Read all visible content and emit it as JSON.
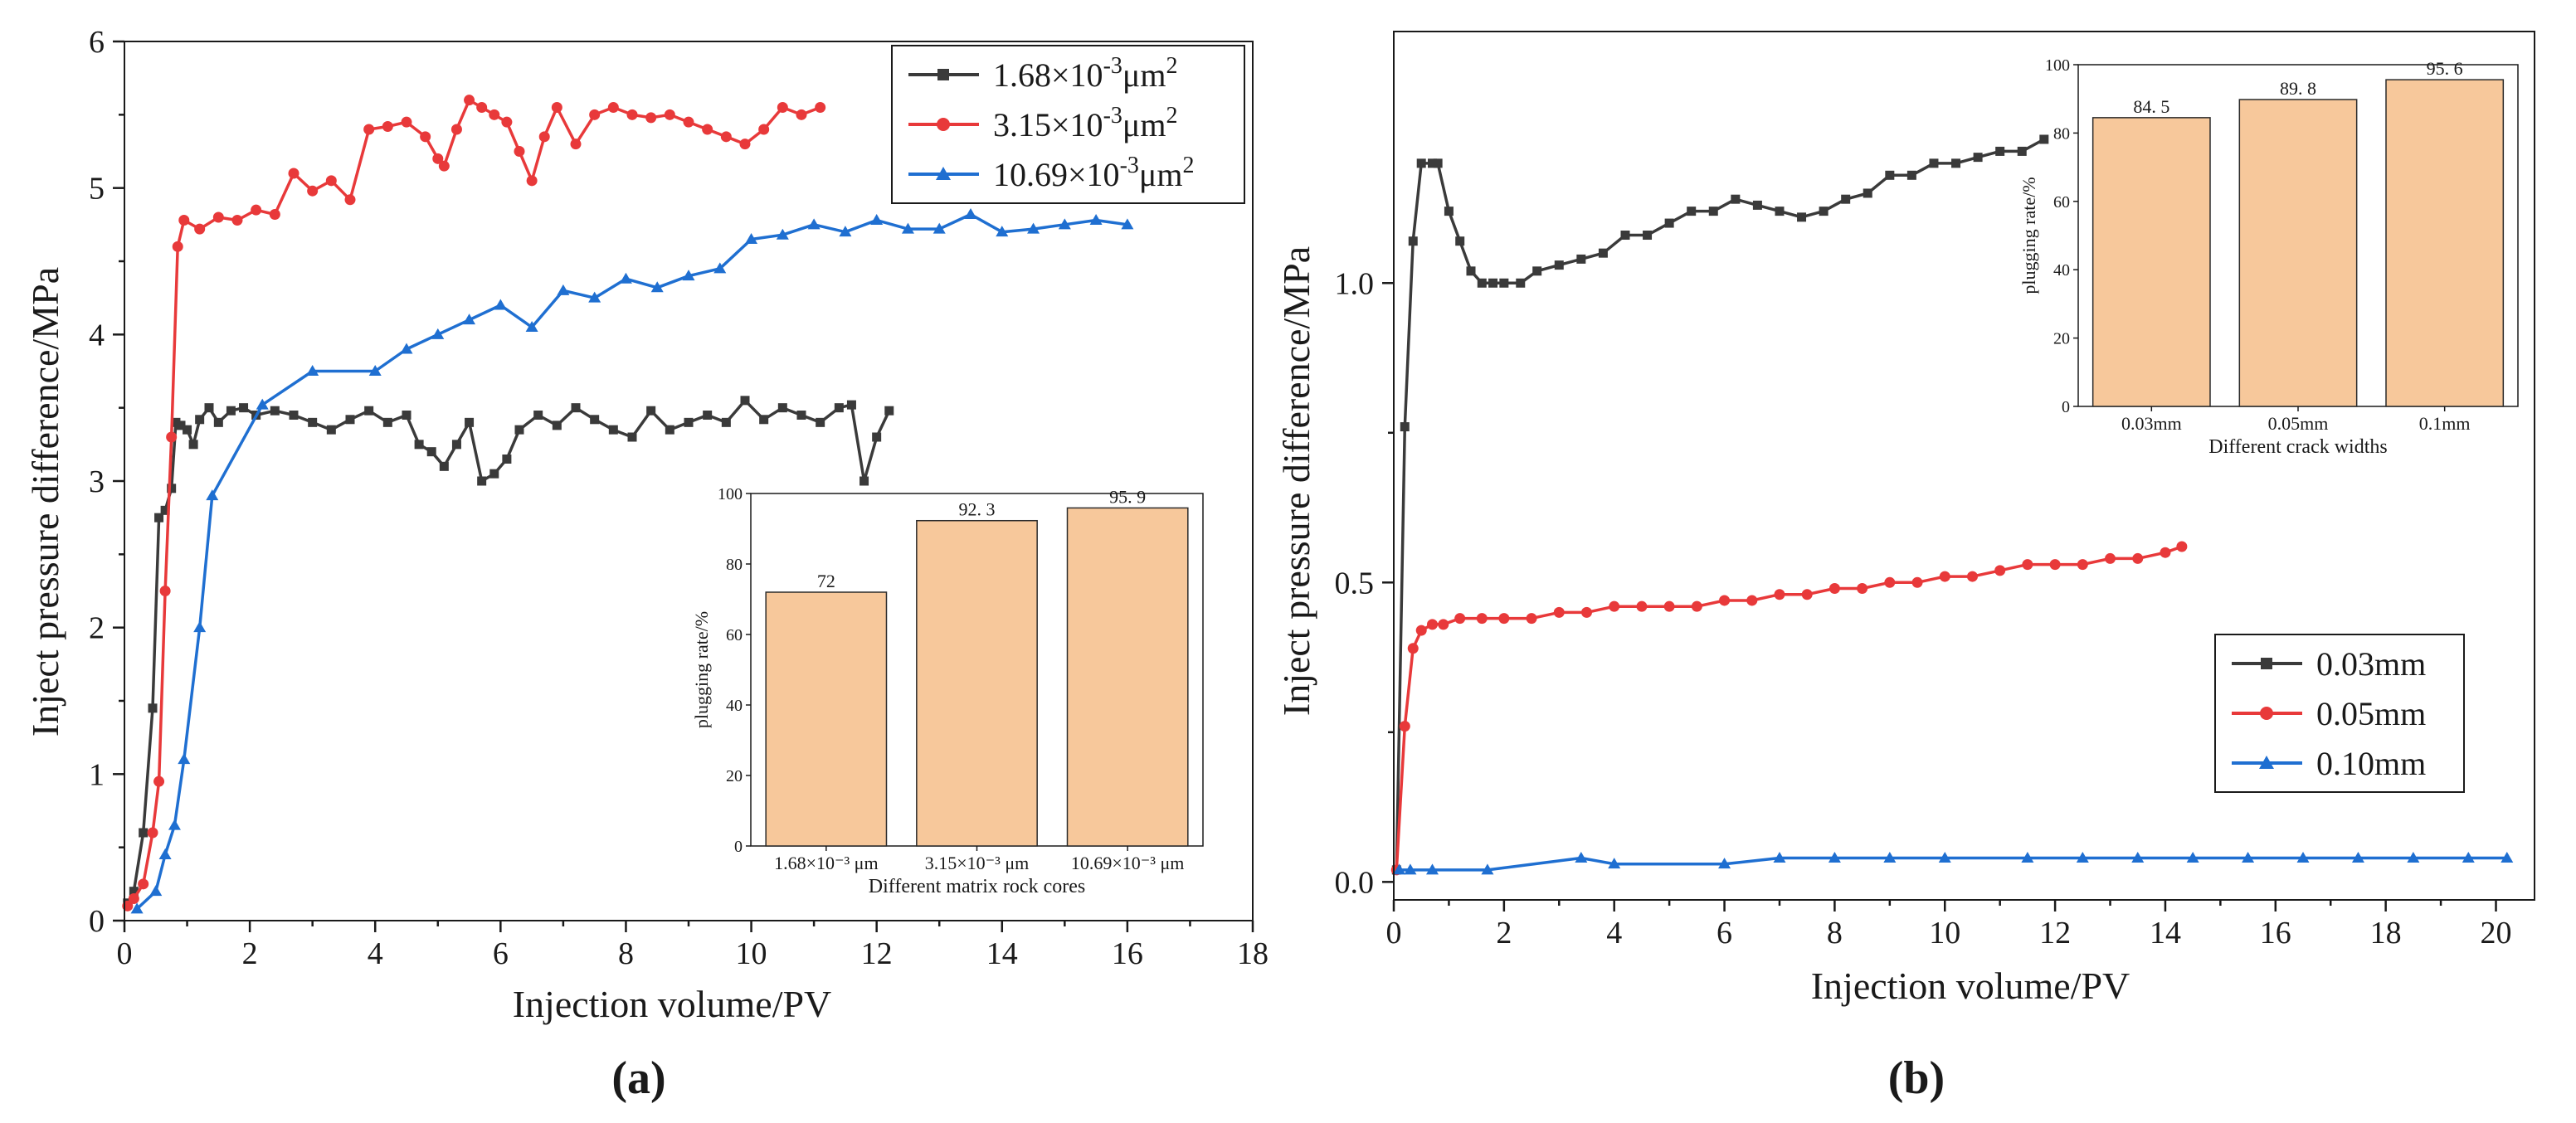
{
  "colors": {
    "series_black": "#3a3a3a",
    "series_red": "#e8393a",
    "series_blue": "#1f6fd1",
    "bar_fill": "#f7c89b",
    "bar_stroke": "#2b2b2b"
  },
  "panel_labels": {
    "a": "(a)",
    "b": "(b)"
  },
  "chart_data": [
    {
      "id": "a",
      "type": "line",
      "title": "",
      "xlabel": "Injection volume/PV",
      "ylabel": "Inject pressure difference/MPa",
      "xlim": [
        0,
        18
      ],
      "ylim": [
        0,
        6
      ],
      "xticks": [
        0,
        2,
        4,
        6,
        8,
        10,
        12,
        14,
        16,
        18
      ],
      "yticks": [
        0,
        1,
        2,
        3,
        4,
        5,
        6
      ],
      "xtick_labels": [
        "0",
        "2",
        "4",
        "6",
        "8",
        "10",
        "12",
        "14",
        "16",
        "18"
      ],
      "ytick_labels": [
        "0",
        "1",
        "2",
        "3",
        "4",
        "5",
        "6"
      ],
      "legend_position": "top-right",
      "series": [
        {
          "name": "1.68×10⁻³μm²",
          "legend_base": "1.68×10",
          "legend_exp": "-3",
          "legend_unit": "μm",
          "legend_unit_exp": "2",
          "color": "#3a3a3a",
          "marker": "square",
          "x": [
            0.05,
            0.15,
            0.3,
            0.45,
            0.55,
            0.65,
            0.75,
            0.82,
            0.9,
            1.0,
            1.1,
            1.2,
            1.35,
            1.5,
            1.7,
            1.9,
            2.1,
            2.4,
            2.7,
            3.0,
            3.3,
            3.6,
            3.9,
            4.2,
            4.5,
            4.7,
            4.9,
            5.1,
            5.3,
            5.5,
            5.7,
            5.9,
            6.1,
            6.3,
            6.6,
            6.9,
            7.2,
            7.5,
            7.8,
            8.1,
            8.4,
            8.7,
            9.0,
            9.3,
            9.6,
            9.9,
            10.2,
            10.5,
            10.8,
            11.1,
            11.4,
            11.6,
            11.8,
            12.0,
            12.2
          ],
          "values": [
            0.12,
            0.2,
            0.6,
            1.45,
            2.75,
            2.8,
            2.95,
            3.4,
            3.38,
            3.35,
            3.25,
            3.42,
            3.5,
            3.4,
            3.48,
            3.5,
            3.45,
            3.48,
            3.45,
            3.4,
            3.35,
            3.42,
            3.48,
            3.4,
            3.45,
            3.25,
            3.2,
            3.1,
            3.25,
            3.4,
            3.0,
            3.05,
            3.15,
            3.35,
            3.45,
            3.38,
            3.5,
            3.42,
            3.35,
            3.3,
            3.48,
            3.35,
            3.4,
            3.45,
            3.4,
            3.55,
            3.42,
            3.5,
            3.45,
            3.4,
            3.5,
            3.52,
            3.0,
            3.3,
            3.48
          ]
        },
        {
          "name": "3.15×10⁻³μm²",
          "legend_base": "3.15×10",
          "legend_exp": "-3",
          "legend_unit": "μm",
          "legend_unit_exp": "2",
          "color": "#e8393a",
          "marker": "circle",
          "x": [
            0.05,
            0.15,
            0.3,
            0.45,
            0.55,
            0.65,
            0.75,
            0.85,
            0.95,
            1.2,
            1.5,
            1.8,
            2.1,
            2.4,
            2.7,
            3.0,
            3.3,
            3.6,
            3.9,
            4.2,
            4.5,
            4.8,
            5.0,
            5.1,
            5.3,
            5.5,
            5.7,
            5.9,
            6.1,
            6.3,
            6.5,
            6.7,
            6.9,
            7.2,
            7.5,
            7.8,
            8.1,
            8.4,
            8.7,
            9.0,
            9.3,
            9.6,
            9.9,
            10.2,
            10.5,
            10.8,
            11.1
          ],
          "values": [
            0.1,
            0.15,
            0.25,
            0.6,
            0.95,
            2.25,
            3.3,
            4.6,
            4.78,
            4.72,
            4.8,
            4.78,
            4.85,
            4.82,
            5.1,
            4.98,
            5.05,
            4.92,
            5.4,
            5.42,
            5.45,
            5.35,
            5.2,
            5.15,
            5.4,
            5.6,
            5.55,
            5.5,
            5.45,
            5.25,
            5.05,
            5.35,
            5.55,
            5.3,
            5.5,
            5.55,
            5.5,
            5.48,
            5.5,
            5.45,
            5.4,
            5.35,
            5.3,
            5.4,
            5.55,
            5.5,
            5.55
          ]
        },
        {
          "name": "10.69×10⁻³μm²",
          "legend_base": "10.69×10",
          "legend_exp": "-3",
          "legend_unit": "μm",
          "legend_unit_exp": "2",
          "color": "#1f6fd1",
          "marker": "triangle",
          "x": [
            0.2,
            0.5,
            0.65,
            0.8,
            0.95,
            1.2,
            1.4,
            2.2,
            3.0,
            4.0,
            4.5,
            5.0,
            5.5,
            6.0,
            6.5,
            7.0,
            7.5,
            8.0,
            8.5,
            9.0,
            9.5,
            10.0,
            10.5,
            11.0,
            11.5,
            12.0,
            12.5,
            13.0,
            13.5,
            14.0,
            14.5,
            15.0,
            15.5,
            16.0
          ],
          "values": [
            0.08,
            0.2,
            0.45,
            0.65,
            1.1,
            2.0,
            2.9,
            3.52,
            3.75,
            3.75,
            3.9,
            4.0,
            4.1,
            4.2,
            4.05,
            4.3,
            4.25,
            4.38,
            4.32,
            4.4,
            4.45,
            4.65,
            4.68,
            4.75,
            4.7,
            4.78,
            4.72,
            4.72,
            4.82,
            4.7,
            4.72,
            4.75,
            4.78,
            4.75
          ]
        }
      ],
      "inset": {
        "type": "bar",
        "categories": [
          "1.68×10⁻³ μm",
          "3.15×10⁻³ μm",
          "10.69×10⁻³ μm"
        ],
        "values": [
          72,
          92.3,
          95.9
        ],
        "value_labels": [
          "72",
          "92. 3",
          "95. 9"
        ],
        "xlabel": "Different matrix rock cores",
        "ylabel": "plugging rate/%",
        "ylim": [
          0,
          100
        ],
        "yticks": [
          0,
          20,
          40,
          60,
          80,
          100
        ],
        "ytick_labels": [
          "0",
          "20",
          "40",
          "60",
          "80",
          "100"
        ]
      }
    },
    {
      "id": "b",
      "type": "line",
      "title": "",
      "xlabel": "Injection volume/PV",
      "ylabel": "Inject pressure difference/MPa",
      "xlim": [
        0,
        20.7
      ],
      "ylim": [
        -0.03,
        1.42
      ],
      "xticks": [
        0,
        2,
        4,
        6,
        8,
        10,
        12,
        14,
        16,
        18,
        20
      ],
      "yticks": [
        0,
        0.5,
        1.0
      ],
      "xtick_labels": [
        "0",
        "2",
        "4",
        "6",
        "8",
        "10",
        "12",
        "14",
        "16",
        "18",
        "20"
      ],
      "ytick_labels": [
        "0.0",
        "0.5",
        "1.0"
      ],
      "legend_position": "center-right",
      "series": [
        {
          "name": "0.03mm",
          "color": "#3a3a3a",
          "marker": "square",
          "x": [
            0.05,
            0.2,
            0.35,
            0.5,
            0.7,
            0.8,
            1.0,
            1.2,
            1.4,
            1.6,
            1.8,
            2.0,
            2.3,
            2.6,
            3.0,
            3.4,
            3.8,
            4.2,
            4.6,
            5.0,
            5.4,
            5.8,
            6.2,
            6.6,
            7.0,
            7.4,
            7.8,
            8.2,
            8.6,
            9.0,
            9.4,
            9.8,
            10.2,
            10.6,
            11.0,
            11.4,
            11.8
          ],
          "values": [
            0.02,
            0.76,
            1.07,
            1.2,
            1.2,
            1.2,
            1.12,
            1.07,
            1.02,
            1.0,
            1.0,
            1.0,
            1.0,
            1.02,
            1.03,
            1.04,
            1.05,
            1.08,
            1.08,
            1.1,
            1.12,
            1.12,
            1.14,
            1.13,
            1.12,
            1.11,
            1.12,
            1.14,
            1.15,
            1.18,
            1.18,
            1.2,
            1.2,
            1.21,
            1.22,
            1.22,
            1.24
          ]
        },
        {
          "name": "0.05mm",
          "color": "#e8393a",
          "marker": "circle",
          "x": [
            0.05,
            0.2,
            0.35,
            0.5,
            0.7,
            0.9,
            1.2,
            1.6,
            2.0,
            2.5,
            3.0,
            3.5,
            4.0,
            4.5,
            5.0,
            5.5,
            6.0,
            6.5,
            7.0,
            7.5,
            8.0,
            8.5,
            9.0,
            9.5,
            10.0,
            10.5,
            11.0,
            11.5,
            12.0,
            12.5,
            13.0,
            13.5,
            14.0,
            14.3
          ],
          "values": [
            0.02,
            0.26,
            0.39,
            0.42,
            0.43,
            0.43,
            0.44,
            0.44,
            0.44,
            0.44,
            0.45,
            0.45,
            0.46,
            0.46,
            0.46,
            0.46,
            0.47,
            0.47,
            0.48,
            0.48,
            0.49,
            0.49,
            0.5,
            0.5,
            0.51,
            0.51,
            0.52,
            0.53,
            0.53,
            0.53,
            0.54,
            0.54,
            0.55,
            0.56
          ]
        },
        {
          "name": "0.10mm",
          "color": "#1f6fd1",
          "marker": "triangle",
          "x": [
            0.1,
            0.3,
            0.7,
            1.7,
            3.4,
            4.0,
            6.0,
            7.0,
            8.0,
            9.0,
            10.0,
            11.5,
            12.5,
            13.5,
            14.5,
            15.5,
            16.5,
            17.5,
            18.5,
            19.5,
            20.2
          ],
          "values": [
            0.02,
            0.02,
            0.02,
            0.02,
            0.04,
            0.03,
            0.03,
            0.04,
            0.04,
            0.04,
            0.04,
            0.04,
            0.04,
            0.04,
            0.04,
            0.04,
            0.04,
            0.04,
            0.04,
            0.04,
            0.04
          ]
        }
      ],
      "inset": {
        "type": "bar",
        "categories": [
          "0.03mm",
          "0.05mm",
          "0.1mm"
        ],
        "values": [
          84.5,
          89.8,
          95.6
        ],
        "value_labels": [
          "84. 5",
          "89. 8",
          "95. 6"
        ],
        "xlabel": "Different crack widths",
        "ylabel": "plugging rate/%",
        "ylim": [
          0,
          100
        ],
        "yticks": [
          0,
          20,
          40,
          60,
          80,
          100
        ],
        "ytick_labels": [
          "0",
          "20",
          "40",
          "60",
          "80",
          "100"
        ]
      }
    }
  ]
}
